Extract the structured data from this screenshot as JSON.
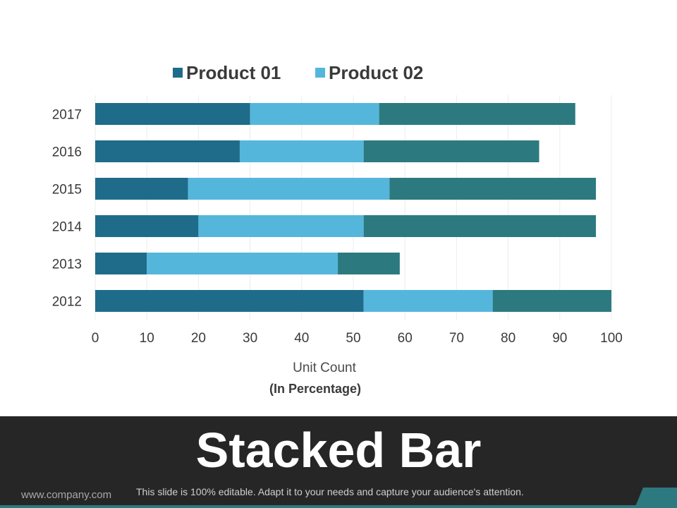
{
  "chart_data": {
    "type": "bar",
    "orientation": "horizontal",
    "stacked": true,
    "categories": [
      "2017",
      "2016",
      "2015",
      "2014",
      "2013",
      "2012"
    ],
    "series": [
      {
        "name": "Product 01",
        "color": "#1f6c8a",
        "values": [
          30,
          28,
          18,
          20,
          10,
          52
        ]
      },
      {
        "name": "Product 02",
        "color": "#55b6dc",
        "values": [
          25,
          24,
          39,
          32,
          37,
          25
        ]
      },
      {
        "name": "",
        "color": "#2c7a7f",
        "values": [
          38,
          34,
          40,
          45,
          12,
          23
        ]
      }
    ],
    "xlim": [
      0,
      100
    ],
    "xticks": [
      "0",
      "10",
      "20",
      "30",
      "40",
      "50",
      "60",
      "70",
      "80",
      "90",
      "100"
    ],
    "xlabel": "Unit Count",
    "xlabel_sub": "(In Percentage)",
    "grid": true,
    "legend_position": "top-center"
  },
  "slide": {
    "title": "Stacked Bar",
    "company": "www.company.com",
    "subtitle": "This slide is 100% editable. Adapt it to your needs and capture your audience's attention."
  },
  "colors": {
    "footer_bg": "#262626",
    "accent": "#2c7a7f"
  }
}
